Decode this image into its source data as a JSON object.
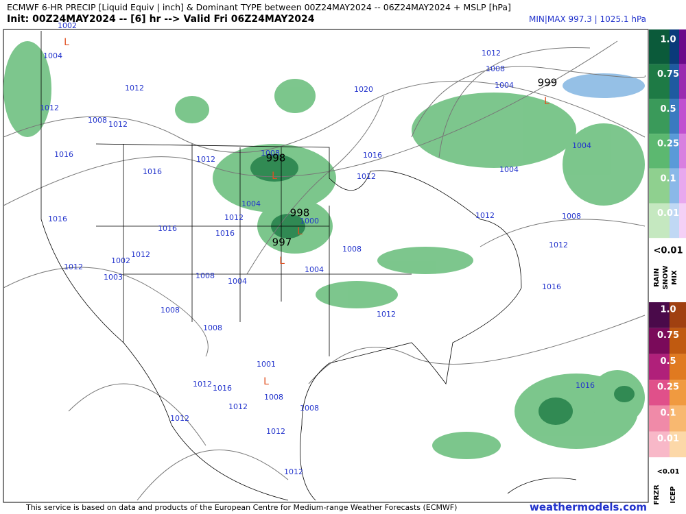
{
  "header": {
    "title": "ECMWF 6-HR PRECIP [Liquid Equiv | inch] & Dominant TYPE between 00Z24MAY2024 -- 06Z24MAY2024 + MSLP [hPa]",
    "subtitle": "Init: 00Z24MAY2024 -- [6] hr --> Valid Fri 06Z24MAY2024",
    "minmax": "MIN|MAX 997.3 | 1025.1 hPa"
  },
  "map": {
    "isobar_labels": [
      "1002",
      "1004",
      "1012",
      "1012",
      "1008",
      "1012",
      "1016",
      "1016",
      "1012",
      "1008",
      "1004",
      "1012",
      "1016",
      "1016",
      "1016",
      "1000",
      "1012",
      "1002",
      "1012",
      "1008",
      "1004",
      "1004",
      "1008",
      "1008",
      "1008",
      "1012",
      "1016",
      "1012",
      "1020",
      "1012",
      "1008",
      "1004",
      "1004",
      "1004",
      "1012",
      "1008",
      "1012",
      "1016",
      "1001",
      "1012",
      "1016",
      "1008",
      "1012",
      "1008",
      "1012",
      "1012",
      "1012",
      "1016",
      "1003"
    ],
    "centers": [
      "998",
      "998",
      "997",
      "999"
    ],
    "lows": [
      "L",
      "L",
      "L",
      "L",
      "L",
      "L"
    ]
  },
  "legend": {
    "rain": {
      "ticks": [
        "1.0",
        "0.75",
        "0.5",
        "0.25",
        "0.1",
        "0.01"
      ],
      "below": "<0.01",
      "types": [
        "RAIN",
        "SNOW",
        "MIX"
      ]
    },
    "ice": {
      "ticks": [
        "1.0",
        "0.75",
        "0.5",
        "0.25",
        "0.1",
        "0.01"
      ],
      "below": "<0.01",
      "types": [
        "FRZR",
        "ICEP"
      ]
    }
  },
  "footer": {
    "credit": "This service is based on data and products of the European Centre for Medium-range Weather Forecasts (ECMWF)",
    "site": "weathermodels.com"
  }
}
